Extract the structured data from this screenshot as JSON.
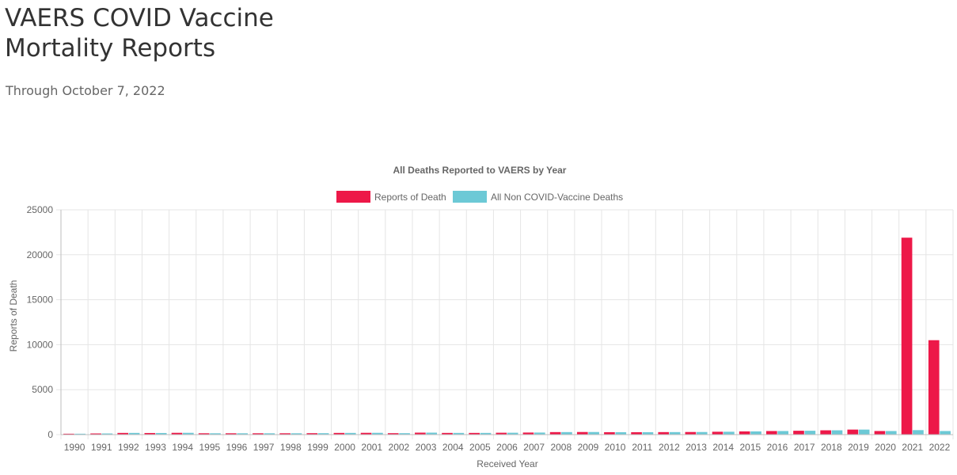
{
  "page": {
    "title_line1": "VAERS COVID Vaccine",
    "title_line2": "Mortality Reports",
    "subtitle": "Through October 7, 2022"
  },
  "colors": {
    "reports_of_death": "#ed1848",
    "non_covid_deaths": "#6cc9d6",
    "grid": "#e5e5e5",
    "axis_text": "#666666"
  },
  "chart_data": {
    "type": "bar",
    "title": "All Deaths Reported to VAERS by Year",
    "xlabel": "Received Year",
    "ylabel": "Reports of Death",
    "ylim": [
      0,
      25000
    ],
    "yticks": [
      0,
      5000,
      10000,
      15000,
      20000,
      25000
    ],
    "grid": true,
    "legend_position": "top",
    "categories": [
      "1990",
      "1991",
      "1992",
      "1993",
      "1994",
      "1995",
      "1996",
      "1997",
      "1998",
      "1999",
      "2000",
      "2001",
      "2002",
      "2003",
      "2004",
      "2005",
      "2006",
      "2007",
      "2008",
      "2009",
      "2010",
      "2011",
      "2012",
      "2013",
      "2014",
      "2015",
      "2016",
      "2017",
      "2018",
      "2019",
      "2020",
      "2021",
      "2022"
    ],
    "series": [
      {
        "name": "Reports of Death",
        "values": [
          100,
          130,
          190,
          180,
          200,
          150,
          150,
          150,
          150,
          160,
          190,
          200,
          160,
          220,
          190,
          190,
          210,
          230,
          280,
          290,
          270,
          270,
          280,
          290,
          320,
          360,
          400,
          430,
          480,
          560,
          400,
          21900,
          10500
        ]
      },
      {
        "name": "All Non COVID-Vaccine Deaths",
        "values": [
          100,
          130,
          190,
          180,
          200,
          150,
          150,
          150,
          150,
          160,
          190,
          200,
          160,
          220,
          190,
          190,
          210,
          230,
          280,
          290,
          270,
          270,
          280,
          290,
          320,
          360,
          400,
          430,
          480,
          560,
          400,
          500,
          400
        ]
      }
    ]
  }
}
